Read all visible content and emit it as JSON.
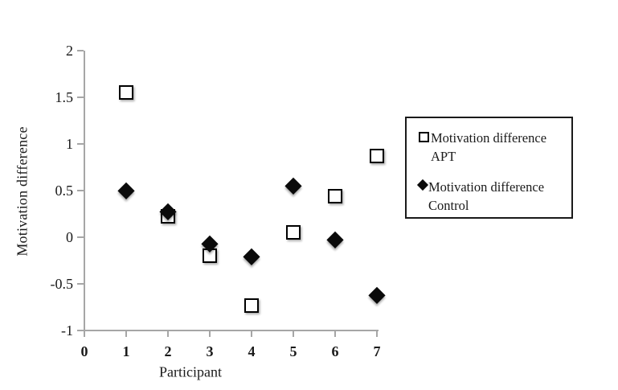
{
  "chart_data": {
    "type": "scatter",
    "title": "",
    "xlabel": "Participant",
    "ylabel": "Motivation difference",
    "x": [
      1,
      2,
      3,
      4,
      5,
      6,
      7
    ],
    "series": [
      {
        "name": "Motivation difference APT",
        "marker": "open-square",
        "values": [
          1.55,
          0.22,
          -0.2,
          -0.73,
          0.05,
          0.44,
          0.87
        ]
      },
      {
        "name": "Motivation difference Control",
        "marker": "filled-diamond",
        "values": [
          0.5,
          0.28,
          -0.07,
          -0.21,
          0.55,
          -0.03,
          -0.62
        ]
      }
    ],
    "xlim": [
      0,
      7
    ],
    "ylim": [
      -1,
      2
    ],
    "x_ticks": [
      0,
      1,
      2,
      3,
      4,
      5,
      6,
      7
    ],
    "x_tick_labels": [
      "0",
      "1",
      "2",
      "3",
      "4",
      "5",
      "6",
      "7"
    ],
    "y_ticks": [
      2,
      1.5,
      1,
      0.5,
      0,
      -0.5,
      -1
    ],
    "y_tick_labels": [
      "2",
      "1.5",
      "1",
      "0.5",
      "0",
      "-0.5",
      "-1"
    ],
    "grid": false,
    "legend_position": "right",
    "colors": {
      "marker": "#000000",
      "axis": "#a6a6a6",
      "text": "#1a1a1a",
      "background": "#ffffff"
    }
  }
}
